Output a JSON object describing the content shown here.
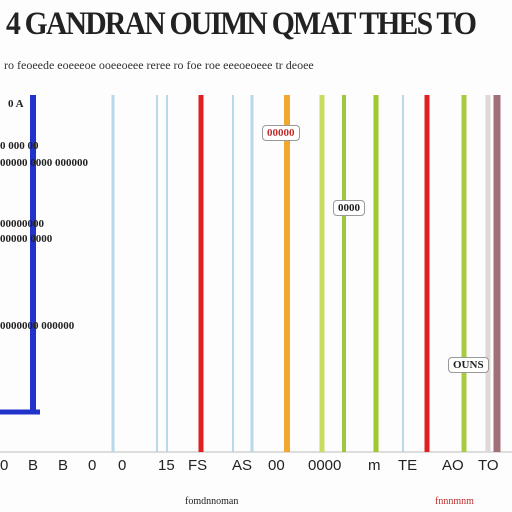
{
  "header": {
    "title": "4 GANDRAN OUIMN QMAT THES TO",
    "subtitle": "ro feoeede eoeeeoe ooeeoeee reree ro foe roe eeeoeoeee tr deoee"
  },
  "annotations": [
    "0 A",
    "0 000 00",
    "00000 0000 000000",
    "00000000",
    "00000 0000",
    "0000000 000000",
    "00000",
    "0000",
    "OUNS"
  ],
  "axis_labels": [
    "0",
    "B",
    "B",
    "0",
    "0",
    "15",
    "FS",
    "AS",
    "00",
    "0000",
    "m",
    "TE",
    "AO",
    "TO"
  ],
  "footer": [
    "fomdnnoman",
    "fnnnmnm"
  ]
}
